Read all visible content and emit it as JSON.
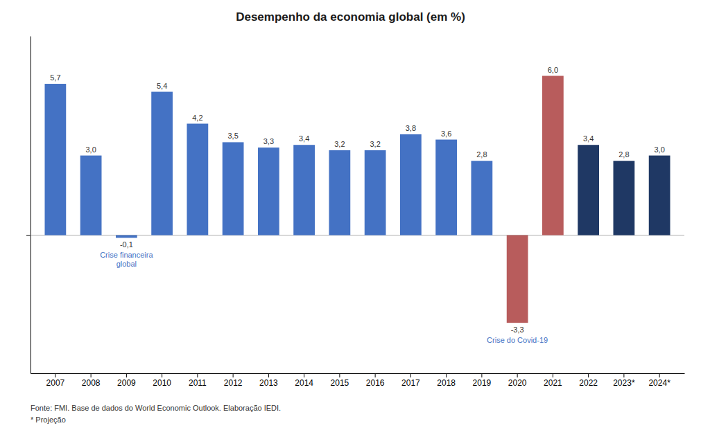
{
  "chart_data": {
    "type": "bar",
    "title": "Desempenho da economia global (em %)",
    "categories": [
      "2007",
      "2008",
      "2009",
      "2010",
      "2011",
      "2012",
      "2013",
      "2014",
      "2015",
      "2016",
      "2017",
      "2018",
      "2019",
      "2020",
      "2021",
      "2022",
      "2023*",
      "2024*"
    ],
    "values": [
      5.7,
      3.0,
      -0.1,
      5.4,
      4.2,
      3.5,
      3.3,
      3.4,
      3.2,
      3.2,
      3.8,
      3.6,
      2.8,
      -3.3,
      6.0,
      3.4,
      2.8,
      3.0
    ],
    "value_labels": [
      "5,7",
      "3,0",
      "-0,1",
      "5,4",
      "4,2",
      "3,5",
      "3,3",
      "3,4",
      "3,2",
      "3,2",
      "3,8",
      "3,6",
      "2,8",
      "-3,3",
      "6,0",
      "3,4",
      "2,8",
      "3,0"
    ],
    "colors": [
      "#4472C4",
      "#4472C4",
      "#4472C4",
      "#4472C4",
      "#4472C4",
      "#4472C4",
      "#4472C4",
      "#4472C4",
      "#4472C4",
      "#4472C4",
      "#4472C4",
      "#4472C4",
      "#4472C4",
      "#B85C5C",
      "#B85C5C",
      "#1F3864",
      "#1F3864",
      "#1F3864"
    ],
    "data_labels": true,
    "ylim": [
      -5.2,
      7.5
    ],
    "yticks": [
      0
    ],
    "tick_labels": "x",
    "annotations": [
      {
        "text": "Crise financeira\nglobal",
        "x": "2009",
        "color": "#4472C4"
      },
      {
        "text": "Crise do Covid-19",
        "x": "2020",
        "color": "#4472C4"
      }
    ],
    "notes": [
      "Fonte: FMI. Base de dados do World Economic Outlook. Elaboração IEDI.",
      "* Projeção"
    ]
  }
}
